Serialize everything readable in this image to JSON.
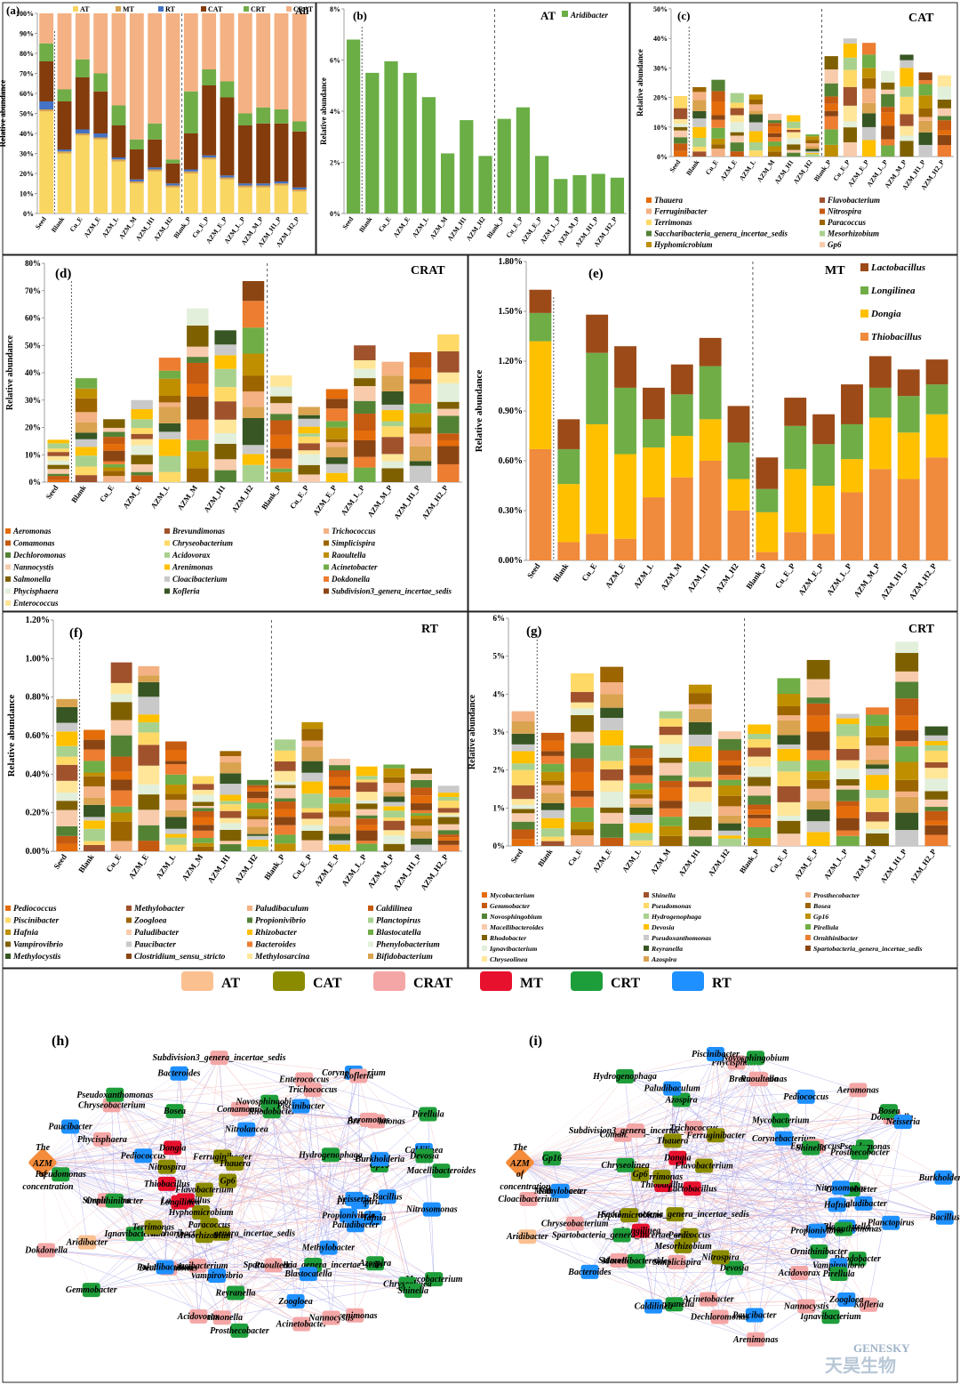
{
  "colors": {
    "panel_border": "#222222",
    "AT": "#FAC090",
    "CAT": "#8B8B00",
    "CRAT": "#F4A6A6",
    "MT": "#E8112D",
    "CRT": "#1E9E3A",
    "RT": "#1E90FF",
    "AZM": "#F48C3C",
    "green_bar": "#6AAE45",
    "edge_red": "#F2B4B4",
    "edge_blue": "#9A9AE8"
  },
  "chart_data": [
    {
      "panel": "(a)",
      "title": "All",
      "type": "bar",
      "stacked": true,
      "ylabel": "Relative abundance",
      "ylim": [
        0,
        100
      ],
      "yticks": [
        "0%",
        "10%",
        "20%",
        "30%",
        "40%",
        "50%",
        "60%",
        "70%",
        "80%",
        "90%",
        "100%"
      ],
      "categories": [
        "Seed",
        "Blank",
        "Cu_E",
        "AZM_E",
        "AZM_L",
        "AZM_M",
        "AZM_H1",
        "AZM_H2",
        "Blank_P",
        "Cu_E_P",
        "AZM_E_P",
        "AZM_L_P",
        "AZM_M_P",
        "AZM_H1_P",
        "AZM_H2_P"
      ],
      "series": [
        {
          "name": "AT",
          "color": "#F9D562",
          "values": [
            51,
            30,
            39,
            37,
            26,
            15,
            21,
            13,
            20,
            27,
            17,
            13,
            13,
            14,
            11
          ]
        },
        {
          "name": "MT",
          "color": "#D9A34F",
          "values": [
            1,
            1,
            1,
            1,
            1,
            1,
            1,
            1,
            1,
            1,
            1,
            1,
            1,
            1,
            1
          ]
        },
        {
          "name": "RT",
          "color": "#4472C4",
          "values": [
            4,
            1,
            2,
            2,
            1,
            1,
            1,
            1,
            1,
            1,
            1,
            1,
            1,
            1,
            1
          ]
        },
        {
          "name": "CAT",
          "color": "#843C0C",
          "values": [
            20,
            24,
            26,
            21,
            16,
            15,
            14,
            10,
            18,
            35,
            39,
            29,
            30,
            29,
            28
          ]
        },
        {
          "name": "CRT",
          "color": "#70AD47",
          "values": [
            9,
            6,
            9,
            9,
            10,
            5,
            8,
            2,
            21,
            8,
            8,
            6,
            8,
            7,
            5
          ]
        },
        {
          "name": "CRAT",
          "color": "#F4B183",
          "values": [
            15,
            38,
            23,
            30,
            46,
            63,
            55,
            73,
            39,
            28,
            34,
            50,
            47,
            48,
            54
          ]
        }
      ]
    },
    {
      "panel": "(b)",
      "title": "AT",
      "type": "bar",
      "legend": [
        "Aridibacter"
      ],
      "ylabel": "Relative abundance",
      "ylim": [
        0,
        8
      ],
      "yticks": [
        "0%",
        "2%",
        "4%",
        "6%",
        "8%"
      ],
      "categories": [
        "Seed",
        "Blank",
        "Cu_E",
        "AZM_E",
        "AZM_L",
        "AZM_M",
        "AZM_H1",
        "AZM_H2",
        "Blank_P",
        "Cu_E_P",
        "AZM_E_P",
        "AZM_L_P",
        "AZM_M_P",
        "AZM_H1_P",
        "AZM_H2_P"
      ],
      "values": [
        6.8,
        5.5,
        5.95,
        5.5,
        4.55,
        2.35,
        3.65,
        2.25,
        3.7,
        4.15,
        2.25,
        1.35,
        1.5,
        1.55,
        1.4
      ]
    },
    {
      "panel": "(c)",
      "title": "CAT",
      "type": "bar",
      "stacked": true,
      "ylabel": "Relative abundance",
      "ylim": [
        0,
        50
      ],
      "yticks": [
        "0%",
        "10%",
        "20%",
        "30%",
        "40%",
        "50%"
      ],
      "categories": [
        "Seed",
        "Blank",
        "Cu_E",
        "AZM_E",
        "AZM_L",
        "AZM_M",
        "AZM_H1",
        "AZM_H2",
        "Blank_P",
        "Cu_E_P",
        "AZM_E_P",
        "AZM_L_P",
        "AZM_M_P",
        "AZM_H1_P",
        "AZM_H2_P"
      ],
      "totals": [
        20.5,
        23.5,
        26,
        21.5,
        21,
        14.5,
        14,
        7.5,
        34,
        40,
        38.5,
        29,
        34.5,
        28.5,
        27.5
      ],
      "legend": [
        "Thauera",
        "Flavobacterium",
        "Ferruginibacter",
        "Nitrospira",
        "Terrimonas",
        "Paracoccus",
        "Saccharibacteria_genera_incertae_sedis",
        "Mesorhizobium",
        "Hyphomicrobium",
        "Gp6"
      ]
    },
    {
      "panel": "(d)",
      "title": "CRAT",
      "type": "bar",
      "stacked": true,
      "ylabel": "Relative abundance",
      "ylim": [
        0,
        80
      ],
      "yticks": [
        "0%",
        "10%",
        "20%",
        "30%",
        "40%",
        "50%",
        "60%",
        "70%",
        "80%"
      ],
      "categories": [
        "Seed",
        "Blank",
        "Cu_E",
        "AZM_E",
        "AZM_L",
        "AZM_M",
        "AZM_H1",
        "AZM_H2",
        "Blank_P",
        "Cu_E_P",
        "AZM_E_P",
        "AZM_L_P",
        "AZM_M_P",
        "AZM_H1_P",
        "AZM_H2_P"
      ],
      "totals": [
        15.5,
        38,
        23,
        30,
        45.5,
        63.5,
        55.5,
        73.5,
        39,
        27.5,
        34,
        50,
        44,
        47.5,
        54
      ],
      "legend": [
        "Aeromonas",
        "Brevundimonas",
        "Trichococcus",
        "Comamonas",
        "Chryseobacterium",
        "Simplicispira",
        "Dechloromonas",
        "Acidovorax",
        "Raoultella",
        "Nannocystis",
        "Arenimonas",
        "Acinetobacter",
        "Salmonella",
        "Cloacibacterium",
        "Dokdonella",
        "Phycisphaera",
        "Kofleria",
        "Subdivision3_genera_incertae_sedis",
        "Enterococcus"
      ]
    },
    {
      "panel": "(e)",
      "title": "MT",
      "type": "bar",
      "stacked": true,
      "ylabel": "Relative abundance",
      "ylim": [
        0,
        1.8
      ],
      "yticks": [
        "0.00%",
        "0.30%",
        "0.60%",
        "0.90%",
        "1.20%",
        "1.50%",
        "1.80%"
      ],
      "categories": [
        "Seed",
        "Blank",
        "Cu_E",
        "AZM_E",
        "AZM_L",
        "AZM_M",
        "AZM_H1",
        "AZM_H2",
        "Blank_P",
        "Cu_E_P",
        "AZM_E_P",
        "AZM_L_P",
        "AZM_M_P",
        "AZM_H1_P",
        "AZM_H2_P"
      ],
      "series": [
        {
          "name": "Thiobacillus",
          "color": "#F08A3C",
          "values": [
            0.67,
            0.11,
            0.16,
            0.13,
            0.38,
            0.5,
            0.6,
            0.3,
            0.05,
            0.17,
            0.16,
            0.41,
            0.55,
            0.49,
            0.62
          ]
        },
        {
          "name": "Dongia",
          "color": "#FFC000",
          "values": [
            0.65,
            0.35,
            0.66,
            0.51,
            0.3,
            0.25,
            0.25,
            0.19,
            0.24,
            0.38,
            0.29,
            0.2,
            0.31,
            0.28,
            0.26
          ]
        },
        {
          "name": "Longilinea",
          "color": "#70AD47",
          "values": [
            0.17,
            0.21,
            0.43,
            0.4,
            0.17,
            0.25,
            0.32,
            0.22,
            0.14,
            0.26,
            0.25,
            0.21,
            0.18,
            0.22,
            0.18
          ]
        },
        {
          "name": "Lactobacillus",
          "color": "#9B4A18",
          "values": [
            0.14,
            0.18,
            0.23,
            0.25,
            0.19,
            0.18,
            0.17,
            0.22,
            0.19,
            0.17,
            0.18,
            0.24,
            0.19,
            0.16,
            0.15
          ]
        }
      ]
    },
    {
      "panel": "(f)",
      "title": "RT",
      "type": "bar",
      "stacked": true,
      "ylabel": "Relative abundance",
      "ylim": [
        0,
        1.2
      ],
      "yticks": [
        "0.00%",
        "0.20%",
        "0.40%",
        "0.60%",
        "0.80%",
        "1.00%",
        "1.20%"
      ],
      "categories": [
        "Seed",
        "Blank",
        "Cu_E",
        "AZM_E",
        "AZM_L",
        "AZM_M",
        "AZM_H1",
        "AZM_H2",
        "Blank_P",
        "Cu_E_P",
        "AZM_E_P",
        "AZM_L_P",
        "AZM_M_P",
        "AZM_H1_P",
        "AZM_H2_P"
      ],
      "totals": [
        0.79,
        0.63,
        0.98,
        0.96,
        0.57,
        0.39,
        0.52,
        0.37,
        0.58,
        0.67,
        0.48,
        0.44,
        0.45,
        0.43,
        0.34
      ],
      "legend": [
        "Pediococcus",
        "Methylobacter",
        "Paludibaculum",
        "Caldilinea",
        "Piscinibacter",
        "Zoogloea",
        "Propionivibrio",
        "Planctopirus",
        "Hafnia",
        "Paludibacter",
        "Rhizobacter",
        "Blastocatella",
        "Vampirovibrio",
        "Paucibacter",
        "Bacteroides",
        "Phenylobacterium",
        "Methylocystis",
        "Clostridium_sensu_stricto",
        "Methylosarcina",
        "Bifidobacterium"
      ]
    },
    {
      "panel": "(g)",
      "title": "CRT",
      "type": "bar",
      "stacked": true,
      "ylabel": "Relative abundance",
      "ylim": [
        0,
        6
      ],
      "yticks": [
        "0%",
        "1%",
        "2%",
        "3%",
        "4%",
        "5%",
        "6%"
      ],
      "categories": [
        "Seed",
        "Blank",
        "Cu_E",
        "AZM_E",
        "AZM_L",
        "AZM_M",
        "AZM_H1",
        "AZM_H2",
        "Blank_P",
        "Cu_E_P",
        "AZM_E_P",
        "AZM_L_P",
        "AZM_M_P",
        "AZM_H1_P",
        "AZM_H2_P"
      ],
      "totals": [
        3.55,
        2.98,
        4.55,
        4.72,
        2.65,
        3.55,
        4.25,
        3.02,
        3.2,
        4.42,
        4.9,
        3.48,
        3.65,
        5.38,
        3.15
      ],
      "legend": [
        "Mycobacterium",
        "Shinella",
        "Prosthecobacter",
        "Gemmobacter",
        "Pseudomonas",
        "Bosea",
        "Novosphingobium",
        "Hydrogenophaga",
        "Gp16",
        "Macellibacteroides",
        "Devosia",
        "Pirellula",
        "Rhodobacter",
        "Pseudoxanthomonas",
        "Ornithinibacter",
        "Ignavibacterium",
        "Reyranella",
        "Spartobacteria_genera_incertae_sedis",
        "Chryseolinea",
        "Azospira"
      ]
    }
  ],
  "network": {
    "legend": [
      {
        "label": "AT",
        "color": "#FAC090"
      },
      {
        "label": "CAT",
        "color": "#8B8B00"
      },
      {
        "label": "CRAT",
        "color": "#F4A6A6"
      },
      {
        "label": "MT",
        "color": "#E8112D"
      },
      {
        "label": "CRT",
        "color": "#1E9E3A"
      },
      {
        "label": "RT",
        "color": "#1E90FF"
      }
    ],
    "h": {
      "panel": "(h)",
      "center": "The AZM of concentration",
      "nodes": [
        "Planctopirus",
        "Hafnia",
        "Propionivibrio",
        "Paludibacter",
        "Mycobacterium",
        "Azospira",
        "Chryseolinea",
        "Methylobacter",
        "Shinella",
        "Arenimonas",
        "Spartobacteria_genera_incertae_sedis",
        "Blastocatella",
        "Acinetobacter",
        "Nannocystis",
        "Raoultella",
        "Zoogloea",
        "Prosthecobacter",
        "Reyranella",
        "Salmonella",
        "Acidovorax",
        "Saccharibacteria_genera_incertae_sedis",
        "Vampirovibrio",
        "Cloacibacterium",
        "Mesorhizobium",
        "Paracoccus",
        "Dechloromonas",
        "Paludibaculum",
        "Gemmobacter",
        "Ignavibacterium",
        "Aridibacter",
        "Hyphomicrobium",
        "Terrimonas",
        "Dokdonella",
        "Lactobacillus",
        "Simplicispira",
        "Longilinea",
        "Ornithinibacter",
        "Pseudomonas",
        "Flavobacterium",
        "Thiobacillus",
        "Nitrospira",
        "Paucibacter",
        "Pediococcus",
        "Phycisphaera",
        "Dongia",
        "Chryseobacterium",
        "Gp6",
        "Pseudoxanthomonas",
        "Bacteroides",
        "Bosea",
        "Ferruginibacter",
        "Subdivision3_genera_incertae_sedis",
        "Thauera",
        "Comamonas",
        "Nitrolancea",
        "Novosphingobium",
        "Rhodobacter",
        "Enterococcus",
        "Trichococcus",
        "Piscinibacter",
        "Corynebacterium",
        "Kofleria",
        "Brevundimonas",
        "Hydrogenophaga",
        "Aeromonas",
        "Pirellula",
        "Caldilinea",
        "Gp16",
        "Devosia",
        "Burkholderia",
        "Macellibacteroides",
        "Neisseria",
        "Bacillus",
        "Nitrosomonas"
      ]
    },
    "i": {
      "panel": "(i)",
      "center": "The AZM of concentration",
      "nodes": [
        "Paludibacter",
        "Planctopirus",
        "Blastocatella",
        "Pseudoxanthomonas",
        "Propionivibrio",
        "Rhodobacter",
        "Ornithinibacter",
        "Vampirovibrio",
        "Pirellula",
        "Kofleria",
        "Ignavibacterium",
        "Zoogloea",
        "Acidovorax",
        "Nannocystis",
        "Paucibacter",
        "Arenimonas",
        "Devosia",
        "Dechloromonas",
        "Acinetobacter",
        "Nitrospira",
        "Reyranella",
        "Caldilinea",
        "Simplicispira",
        "Paracoccus",
        "Mesorhizobium",
        "Salmonella",
        "Bacteroides",
        "Macellibacteroides",
        "Longilinea",
        "Spartobacteria_genera_incertae_sedis",
        "Aridibacter",
        "Saccharibacteria_genera_incertae_sedis",
        "Hyphomicrobium",
        "Chryseobacterium",
        "Cloacibacterium",
        "Nitrolancea",
        "Methylobacter",
        "Thiobacillus",
        "Lactobacillus",
        "Gp16",
        "Terrimonas",
        "Gp6",
        "Chryseolinea",
        "Comamonas",
        "Dongia",
        "Subdivision3_genera_incertae_sedis",
        "Hydrogenophaga",
        "Thauera",
        "Flavobacterium",
        "Azospira",
        "Paludibaculum",
        "Trichococcus",
        "Ferruginibacter",
        "Phycisphaera",
        "Piscinibacter",
        "Novosphingobium",
        "Brevundimonas",
        "Raoultella",
        "Mycobacterium",
        "Pediococcus",
        "Corynebacterium",
        "Aeromonas",
        "Enterococcus",
        "Dokdonella",
        "Bosea",
        "Shinella",
        "Neisseria",
        "Pseudomonas",
        "Prosthecobacter",
        "Burkholderia",
        "Gemmobacter",
        "Nitrosomonas",
        "Hafnia",
        "Bacillus"
      ]
    }
  },
  "watermark": {
    "en": "GENESKY",
    "cn": "天昊生物"
  }
}
